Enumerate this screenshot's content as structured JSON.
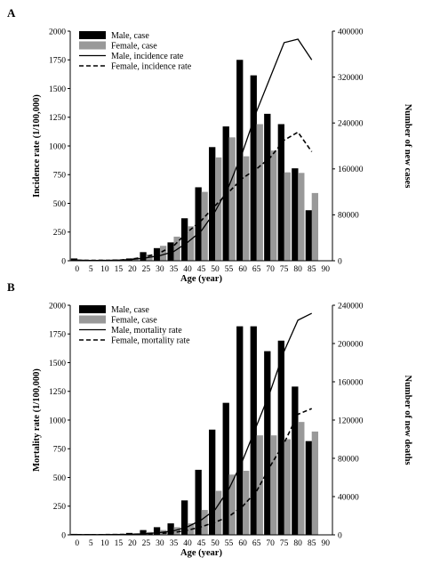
{
  "chart_data": [
    {
      "panel_label": "A",
      "type": "bar",
      "categories": [
        "0",
        "5",
        "10",
        "15",
        "20",
        "25",
        "30",
        "35",
        "40",
        "45",
        "50",
        "55",
        "60",
        "65",
        "70",
        "75",
        "80",
        "85"
      ],
      "xlabel": "Age (year)",
      "xticks": [
        "0",
        "5",
        "10",
        "15",
        "20",
        "25",
        "30",
        "35",
        "40",
        "45",
        "50",
        "55",
        "60",
        "65",
        "70",
        "75",
        "80",
        "85",
        "90"
      ],
      "ylabel_left": "Incidence rate (1/100,000)",
      "ylim_left": [
        0,
        2000
      ],
      "yticks_left": [
        "0",
        "250",
        "500",
        "750",
        "1000",
        "1250",
        "1500",
        "1750",
        "2000"
      ],
      "ylabel_right": "Number of new cases",
      "ylim_right": [
        0,
        400000
      ],
      "yticks_right": [
        "0",
        "80000",
        "160000",
        "240000",
        "320000",
        "400000"
      ],
      "legend_position": "top-left",
      "series": [
        {
          "name": "Male, case",
          "kind": "bar",
          "axis": "right",
          "color": "#000000",
          "values": [
            4000,
            1500,
            1800,
            2000,
            4000,
            15000,
            22000,
            32000,
            74000,
            128000,
            198000,
            234000,
            350000,
            323000,
            256000,
            238000,
            161000,
            88000
          ]
        },
        {
          "name": "Female, case",
          "kind": "bar",
          "axis": "right",
          "color": "#999999",
          "values": [
            2000,
            1200,
            1500,
            2000,
            5000,
            11000,
            26000,
            42000,
            60000,
            120000,
            180000,
            215000,
            182000,
            238000,
            192000,
            154000,
            153000,
            118000
          ]
        },
        {
          "name": "Male, incidence rate",
          "kind": "line",
          "axis": "left",
          "color": "#000000",
          "dash": "solid",
          "values": [
            5,
            3,
            3,
            5,
            12,
            25,
            45,
            80,
            160,
            260,
            430,
            650,
            950,
            1300,
            1600,
            1900,
            1930,
            1750
          ]
        },
        {
          "name": "Female, incidence rate",
          "kind": "line",
          "axis": "left",
          "color": "#000000",
          "dash": "dashed",
          "values": [
            4,
            3,
            3,
            5,
            15,
            35,
            70,
            130,
            250,
            350,
            480,
            600,
            720,
            800,
            900,
            1050,
            1120,
            950
          ]
        }
      ]
    },
    {
      "panel_label": "B",
      "type": "bar",
      "categories": [
        "0",
        "5",
        "10",
        "15",
        "20",
        "25",
        "30",
        "35",
        "40",
        "45",
        "50",
        "55",
        "60",
        "65",
        "70",
        "75",
        "80",
        "85"
      ],
      "xlabel": "Age (year)",
      "xticks": [
        "0",
        "5",
        "10",
        "15",
        "20",
        "25",
        "30",
        "35",
        "40",
        "45",
        "50",
        "55",
        "60",
        "65",
        "70",
        "75",
        "80",
        "85",
        "90"
      ],
      "ylabel_left": "Mortality rate (1/100,000)",
      "ylim_left": [
        0,
        2000
      ],
      "yticks_left": [
        "0",
        "250",
        "500",
        "750",
        "1000",
        "1250",
        "1500",
        "1750",
        "2000"
      ],
      "ylabel_right": "Number of new deaths",
      "ylim_right": [
        0,
        240000
      ],
      "yticks_right": [
        "0",
        "40000",
        "80000",
        "120000",
        "160000",
        "200000",
        "240000"
      ],
      "legend_position": "top-left",
      "series": [
        {
          "name": "Male, case",
          "kind": "bar",
          "axis": "right",
          "color": "#000000",
          "values": [
            1000,
            800,
            800,
            1000,
            2000,
            5000,
            8000,
            12000,
            36000,
            68000,
            110000,
            138000,
            218000,
            218000,
            192000,
            203000,
            155000,
            98000
          ]
        },
        {
          "name": "Female, case",
          "kind": "bar",
          "axis": "right",
          "color": "#999999",
          "values": [
            800,
            600,
            700,
            800,
            1500,
            3000,
            5000,
            8000,
            12000,
            26000,
            46000,
            63000,
            67000,
            104000,
            104000,
            100000,
            118000,
            108000
          ]
        },
        {
          "name": "Male, mortality rate",
          "kind": "line",
          "axis": "left",
          "color": "#000000",
          "dash": "solid",
          "values": [
            2,
            2,
            2,
            3,
            5,
            10,
            20,
            35,
            70,
            130,
            220,
            400,
            650,
            950,
            1250,
            1600,
            1870,
            1930
          ]
        },
        {
          "name": "Female, mortality rate",
          "kind": "line",
          "axis": "left",
          "color": "#000000",
          "dash": "dashed",
          "values": [
            2,
            2,
            2,
            3,
            5,
            8,
            12,
            20,
            40,
            70,
            110,
            160,
            250,
            380,
            600,
            800,
            1050,
            1100
          ]
        }
      ]
    }
  ]
}
